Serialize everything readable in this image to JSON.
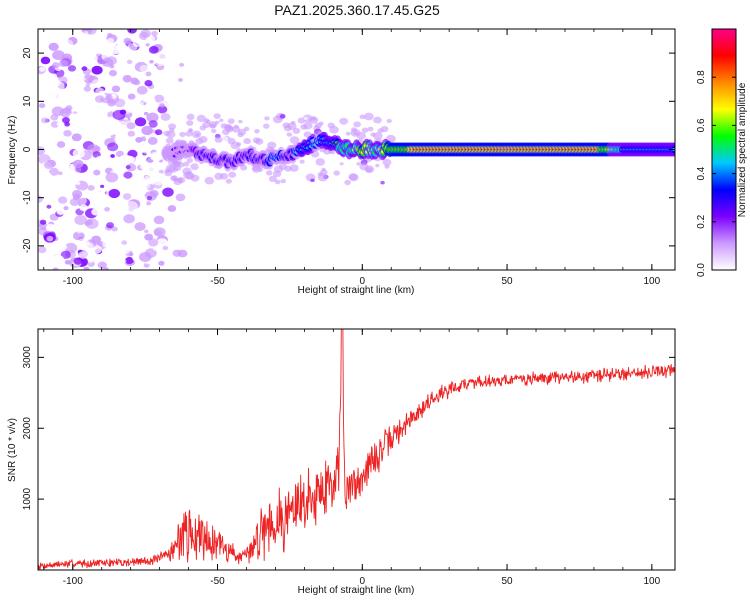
{
  "title": "PAZ1.2025.360.17.45.G25",
  "colorbar": {
    "label": "Normalized spectral amplitude",
    "ticks": [
      0.0,
      0.2,
      0.4,
      0.6,
      0.8
    ],
    "tick_labels": [
      "0.0",
      "0.2",
      "0.4",
      "0.6",
      "0.8"
    ],
    "range": [
      0,
      1
    ],
    "colors": [
      "#ffffff",
      "#cc99ff",
      "#7a00ff",
      "#0000ff",
      "#00c8ff",
      "#00ff00",
      "#ffff00",
      "#ff8800",
      "#ff0000",
      "#ff0088"
    ]
  },
  "chart_data": [
    {
      "type": "heatmap",
      "xlabel": "Height of straight line (km)",
      "ylabel": "Frequency (Hz)",
      "xlim": [
        -112,
        108
      ],
      "ylim": [
        -25,
        25
      ],
      "xticks": [
        -100,
        -50,
        0,
        50,
        100
      ],
      "xtick_labels": [
        "-100",
        "-50",
        "0",
        "50",
        "100"
      ],
      "yticks": [
        -20,
        -10,
        0,
        10,
        20
      ],
      "ytick_labels": [
        "-20",
        "-10",
        "0",
        "10",
        "20"
      ],
      "noise_region_x": [
        -112,
        -68
      ],
      "trace": {
        "x": [
          -68,
          -60,
          -55,
          -50,
          -45,
          -40,
          -35,
          -30,
          -25,
          -20,
          -15,
          -10,
          -5,
          0,
          5,
          10,
          15,
          20,
          30,
          50,
          80,
          90,
          108
        ],
        "freq": [
          -1,
          0,
          -1,
          -2,
          -3,
          -1,
          -2,
          -2,
          -1,
          0,
          2,
          1,
          0,
          0,
          0,
          0,
          0,
          0,
          0,
          0,
          0,
          0,
          0
        ],
        "amplitude": [
          0.15,
          0.2,
          0.3,
          0.35,
          0.3,
          0.3,
          0.35,
          0.4,
          0.35,
          0.45,
          0.4,
          0.5,
          0.55,
          0.7,
          0.6,
          0.75,
          0.8,
          0.85,
          0.9,
          0.95,
          0.9,
          0.5,
          0.45
        ]
      }
    },
    {
      "type": "line",
      "xlabel": "Height of straight line (km)",
      "ylabel": "SNR (10 * v/v)",
      "xlim": [
        -112,
        108
      ],
      "ylim": [
        0,
        3400
      ],
      "xticks": [
        -100,
        -50,
        0,
        50,
        100
      ],
      "xtick_labels": [
        "-100",
        "-50",
        "0",
        "50",
        "100"
      ],
      "yticks": [
        1000,
        2000,
        3000
      ],
      "ytick_labels": [
        "1000",
        "2000",
        "3000"
      ],
      "series": [
        {
          "name": "SNR",
          "color": "#ee2222",
          "x": [
            -112,
            -100,
            -90,
            -80,
            -70,
            -65,
            -62,
            -60,
            -58,
            -55,
            -52,
            -50,
            -47,
            -44,
            -41,
            -38,
            -35,
            -32,
            -30,
            -27,
            -25,
            -22,
            -20,
            -18,
            -15,
            -12,
            -10,
            -8,
            -7,
            -6,
            -5,
            -3,
            0,
            3,
            6,
            10,
            15,
            20,
            25,
            30,
            35,
            40,
            50,
            60,
            70,
            80,
            90,
            100,
            108
          ],
          "y": [
            60,
            90,
            100,
            110,
            150,
            300,
            550,
            500,
            450,
            550,
            400,
            400,
            300,
            220,
            160,
            300,
            600,
            700,
            700,
            750,
            820,
            900,
            950,
            1050,
            1100,
            1200,
            1300,
            1500,
            3400,
            1000,
            1100,
            1200,
            1350,
            1500,
            1650,
            1850,
            2050,
            2250,
            2450,
            2550,
            2620,
            2660,
            2680,
            2700,
            2720,
            2740,
            2770,
            2800,
            2820
          ],
          "noise_amplitude": [
            60,
            70,
            70,
            80,
            90,
            200,
            500,
            450,
            400,
            450,
            300,
            300,
            250,
            150,
            120,
            250,
            500,
            550,
            550,
            550,
            600,
            600,
            550,
            550,
            500,
            550,
            550,
            500,
            0,
            400,
            400,
            400,
            350,
            300,
            300,
            250,
            200,
            180,
            150,
            130,
            120,
            110,
            110,
            110,
            110,
            120,
            120,
            120,
            120
          ]
        }
      ]
    }
  ]
}
